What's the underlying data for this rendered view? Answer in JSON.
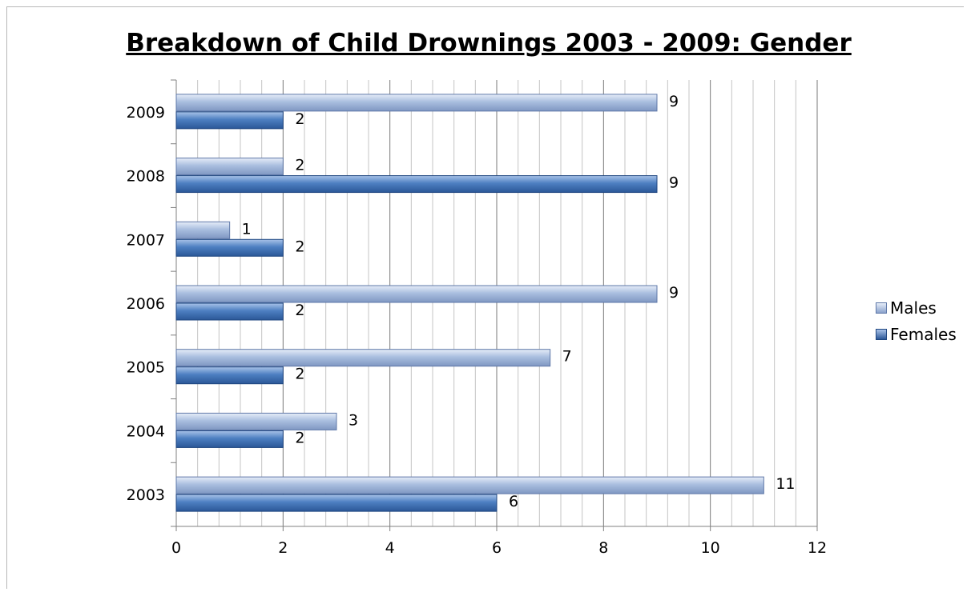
{
  "chart_data": {
    "type": "bar",
    "orientation": "horizontal",
    "title": "Breakdown of Child Drownings 2003 - 2009: Gender",
    "categories": [
      "2003",
      "2004",
      "2005",
      "2006",
      "2007",
      "2008",
      "2009"
    ],
    "series": [
      {
        "name": "Males",
        "values": [
          11,
          3,
          7,
          9,
          1,
          2,
          9
        ]
      },
      {
        "name": "Females",
        "values": [
          6,
          2,
          2,
          2,
          2,
          9,
          2
        ]
      }
    ],
    "xlim": [
      0,
      12
    ],
    "x_ticks": [
      "0",
      "2",
      "4",
      "6",
      "8",
      "10",
      "12"
    ],
    "grid": true,
    "legend_position": "right",
    "colors": {
      "Males": "#9db3d6",
      "Females": "#3e6fb2"
    }
  }
}
